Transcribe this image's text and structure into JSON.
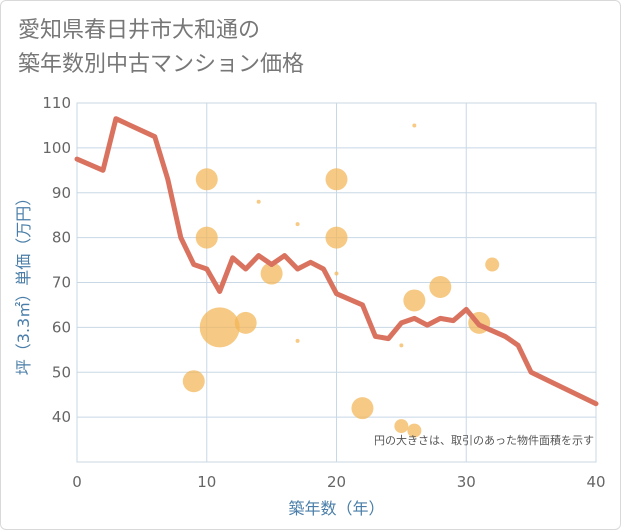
{
  "title_lines": [
    "愛知県春日井市大和通の",
    "築年数別中古マンション価格"
  ],
  "chart_data": {
    "type": "scatter",
    "xlabel": "築年数（年）",
    "ylabel": "坪（3.3㎡）単価（万円）",
    "xlim": [
      0,
      40
    ],
    "ylim": [
      30,
      110
    ],
    "x_ticks": [
      0,
      10,
      20,
      30,
      40
    ],
    "y_ticks": [
      40,
      50,
      60,
      70,
      80,
      90,
      100,
      110
    ],
    "grid": true,
    "note": "円の大きさは、取引のあった物件面積を示す",
    "colors": {
      "line": "#d9735f",
      "bubble": "#f2b556",
      "grid": "#c8d8e6",
      "axis_text": "#4a7ea8"
    },
    "line": {
      "x": [
        0,
        2,
        3,
        6,
        7,
        8,
        9,
        10,
        11,
        12,
        13,
        14,
        15,
        16,
        17,
        18,
        19,
        20,
        22,
        23,
        24,
        25,
        26,
        27,
        28,
        29,
        30,
        31,
        33,
        34,
        35,
        40
      ],
      "y": [
        97.5,
        95,
        106.5,
        102.5,
        93,
        80,
        74,
        73,
        68,
        75.5,
        73,
        76,
        74,
        76,
        73,
        74.5,
        73,
        67.5,
        65,
        58,
        57.5,
        61,
        62,
        60.5,
        62,
        61.5,
        64,
        60.5,
        58,
        56,
        50,
        43
      ]
    },
    "bubbles": [
      {
        "x": 9,
        "y": 48,
        "size": 11
      },
      {
        "x": 10,
        "y": 93,
        "size": 11
      },
      {
        "x": 10,
        "y": 80,
        "size": 11
      },
      {
        "x": 11,
        "y": 60,
        "size": 20
      },
      {
        "x": 13,
        "y": 61,
        "size": 11
      },
      {
        "x": 14,
        "y": 88,
        "size": 2
      },
      {
        "x": 15,
        "y": 72,
        "size": 11
      },
      {
        "x": 17,
        "y": 83,
        "size": 2
      },
      {
        "x": 17,
        "y": 57,
        "size": 2
      },
      {
        "x": 20,
        "y": 93,
        "size": 11
      },
      {
        "x": 20,
        "y": 80,
        "size": 11
      },
      {
        "x": 20,
        "y": 72,
        "size": 2
      },
      {
        "x": 22,
        "y": 42,
        "size": 11
      },
      {
        "x": 25,
        "y": 56,
        "size": 2
      },
      {
        "x": 25,
        "y": 38,
        "size": 7
      },
      {
        "x": 26,
        "y": 105,
        "size": 2
      },
      {
        "x": 26,
        "y": 66,
        "size": 11
      },
      {
        "x": 26,
        "y": 37,
        "size": 7
      },
      {
        "x": 28,
        "y": 69,
        "size": 11
      },
      {
        "x": 31,
        "y": 61,
        "size": 11
      },
      {
        "x": 32,
        "y": 74,
        "size": 7
      }
    ]
  }
}
